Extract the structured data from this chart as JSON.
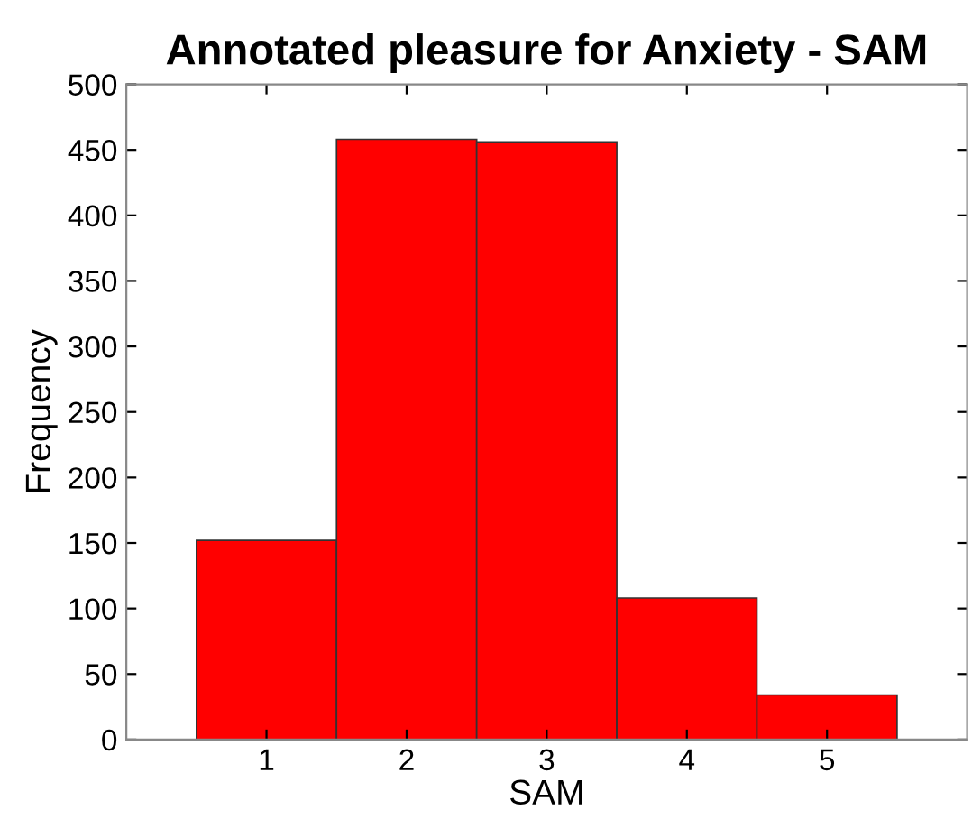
{
  "chart_data": {
    "type": "histogram",
    "title": "Annotated pleasure for Anxiety - SAM",
    "xlabel": "SAM",
    "ylabel": "Frequency",
    "bins": [
      0.5,
      1.5,
      2.5,
      3.5,
      4.5,
      5.5
    ],
    "values": [
      152,
      458,
      456,
      108,
      34
    ],
    "color": "#ff0000",
    "xlim": [
      0,
      6
    ],
    "xticks": [
      1,
      2,
      3,
      4,
      5
    ],
    "ylim": [
      0,
      500
    ],
    "yticks": [
      0,
      50,
      100,
      150,
      200,
      250,
      300,
      350,
      400,
      450,
      500
    ],
    "grid": false,
    "legend": false
  }
}
